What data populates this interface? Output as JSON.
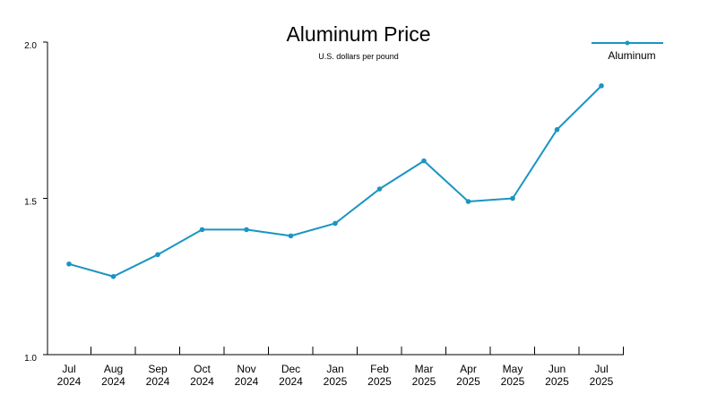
{
  "chart_data": {
    "type": "line",
    "title": "Aluminum Price",
    "subtitle": "U.S. dollars per pound",
    "categories": [
      [
        "Jul",
        "2024"
      ],
      [
        "Aug",
        "2024"
      ],
      [
        "Sep",
        "2024"
      ],
      [
        "Oct",
        "2024"
      ],
      [
        "Nov",
        "2024"
      ],
      [
        "Dec",
        "2024"
      ],
      [
        "Jan",
        "2025"
      ],
      [
        "Feb",
        "2025"
      ],
      [
        "Mar",
        "2025"
      ],
      [
        "Apr",
        "2025"
      ],
      [
        "May",
        "2025"
      ],
      [
        "Jun",
        "2025"
      ],
      [
        "Jul",
        "2025"
      ]
    ],
    "yticks": [
      "1.0",
      "1.5",
      "2.0"
    ],
    "ylim": [
      1.0,
      2.0
    ],
    "series": [
      {
        "name": "Aluminum",
        "color": "#1a95c2",
        "values": [
          1.29,
          1.25,
          1.32,
          1.4,
          1.4,
          1.38,
          1.42,
          1.53,
          1.62,
          1.49,
          1.5,
          1.72,
          1.86
        ]
      }
    ],
    "legend_position": "top-right",
    "grid": false
  }
}
